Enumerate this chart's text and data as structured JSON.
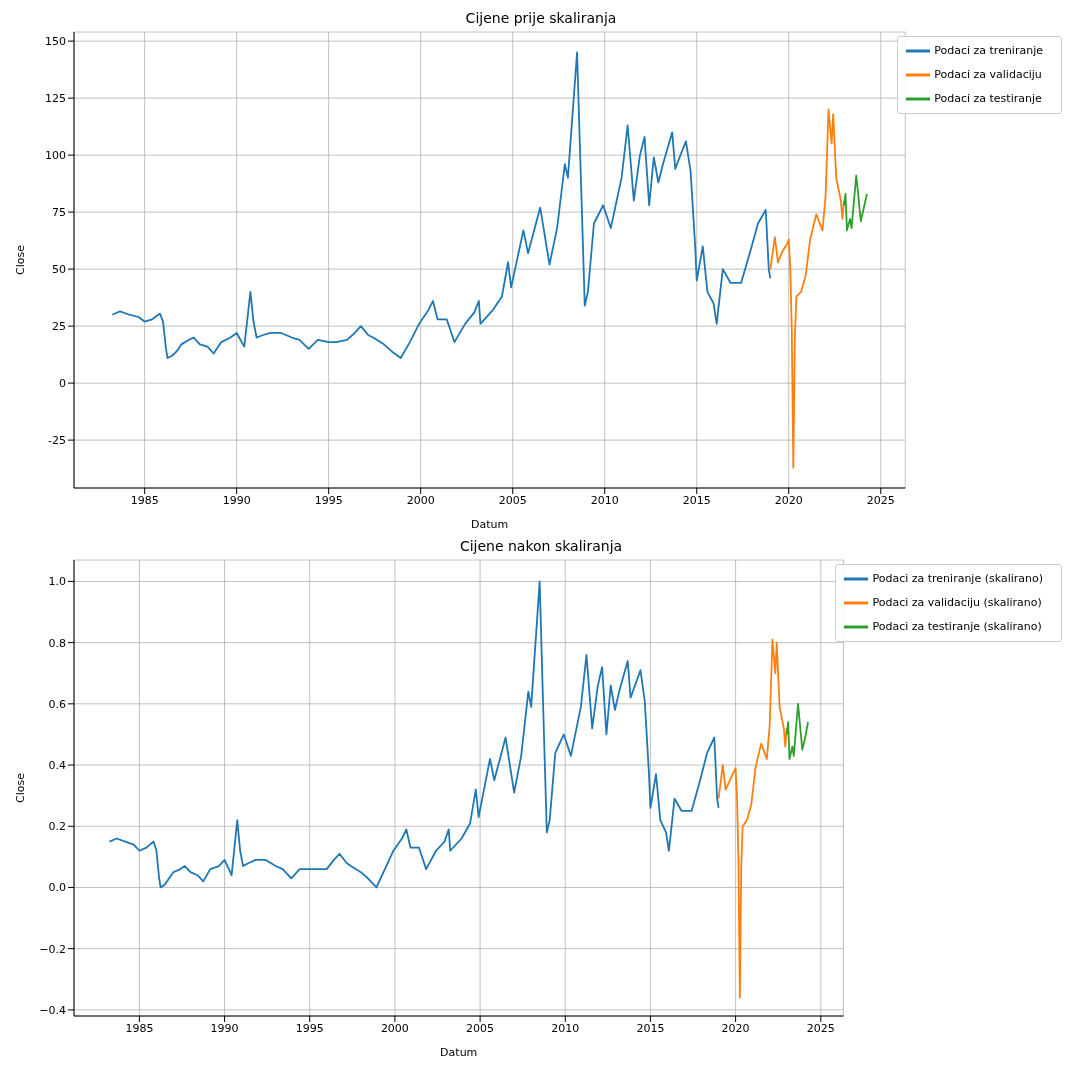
{
  "chart_data": [
    {
      "type": "line",
      "title": "Cijene prije skaliranja",
      "xlabel": "Datum",
      "ylabel": "Close",
      "xlim": [
        "1981-03",
        "2026-05"
      ],
      "xticks": [
        "1985",
        "1990",
        "1995",
        "2000",
        "2005",
        "2010",
        "2015",
        "2020",
        "2025"
      ],
      "ylim": [
        -46,
        154
      ],
      "yticks": [
        -25,
        0,
        25,
        50,
        75,
        100,
        125,
        150
      ],
      "grid": true,
      "legend": "top right",
      "series": [
        {
          "name": "Podaci za treniranje",
          "color": "#1f77b4",
          "x": [
            "1983-04",
            "1983-09",
            "1984-03",
            "1984-09",
            "1985-01",
            "1985-06",
            "1985-11",
            "1986-01",
            "1986-03",
            "1986-04",
            "1986-07",
            "1986-10",
            "1987-01",
            "1987-06",
            "1987-09",
            "1988-01",
            "1988-06",
            "1988-10",
            "1989-03",
            "1989-09",
            "1990-01",
            "1990-06",
            "1990-08",
            "1990-10",
            "1990-12",
            "1991-02",
            "1991-06",
            "1991-11",
            "1992-06",
            "1993-01",
            "1993-06",
            "1993-12",
            "1994-06",
            "1995-01",
            "1995-06",
            "1996-01",
            "1996-06",
            "1996-10",
            "1997-03",
            "1997-06",
            "1998-01",
            "1998-06",
            "1998-12",
            "1999-06",
            "1999-12",
            "2000-06",
            "2000-09",
            "2000-12",
            "2001-06",
            "2001-11",
            "2002-06",
            "2002-12",
            "2003-03",
            "2003-04",
            "2003-12",
            "2004-06",
            "2004-10",
            "2004-12",
            "2005-08",
            "2005-11",
            "2006-07",
            "2007-01",
            "2007-06",
            "2007-11",
            "2008-01",
            "2008-07",
            "2008-09",
            "2008-12",
            "2009-02",
            "2009-06",
            "2009-12",
            "2010-05",
            "2010-12",
            "2011-04",
            "2011-08",
            "2011-12",
            "2012-03",
            "2012-06",
            "2012-09",
            "2012-12",
            "2013-03",
            "2013-09",
            "2013-11",
            "2014-03",
            "2014-06",
            "2014-09",
            "2014-12",
            "2015-01",
            "2015-05",
            "2015-08",
            "2015-12",
            "2016-02",
            "2016-06",
            "2016-11",
            "2017-06",
            "2017-12",
            "2018-05",
            "2018-10",
            "2018-12",
            "2019-01"
          ],
          "values": [
            30,
            31.5,
            30,
            29,
            27,
            28,
            30.5,
            27,
            15,
            11,
            12,
            14,
            17,
            19,
            20,
            17,
            16,
            13,
            18,
            20,
            22,
            16,
            28,
            40,
            27,
            20,
            21,
            22,
            22,
            20,
            19,
            15,
            19,
            18,
            18,
            19,
            22,
            25,
            21,
            20,
            17,
            14,
            11,
            18,
            26,
            32,
            36,
            28,
            28,
            18,
            26,
            31,
            36,
            26,
            32,
            38,
            53,
            42,
            67,
            57,
            77,
            52,
            68,
            96,
            90,
            145,
            100,
            34,
            40,
            70,
            78,
            68,
            90,
            113,
            80,
            100,
            108,
            78,
            99,
            88,
            96,
            110,
            94,
            101,
            106,
            93,
            60,
            45,
            60,
            40,
            35,
            26,
            50,
            44,
            44,
            58,
            70,
            76,
            50,
            46
          ]
        },
        {
          "name": "Podaci za validaciju",
          "color": "#ff7f0e",
          "x": [
            "2019-01",
            "2019-04",
            "2019-06",
            "2019-09",
            "2019-12",
            "2020-01",
            "2020-02",
            "2020-03",
            "2020-04",
            "2020-05",
            "2020-06",
            "2020-09",
            "2020-12",
            "2021-03",
            "2021-07",
            "2021-11",
            "2022-01",
            "2022-03",
            "2022-05",
            "2022-06",
            "2022-08",
            "2022-11",
            "2022-12",
            "2023-01"
          ],
          "values": [
            50,
            64,
            53,
            58,
            61,
            63,
            50,
            24,
            -37,
            20,
            38,
            40,
            47,
            63,
            74,
            67,
            82,
            120,
            105,
            118,
            90,
            80,
            72,
            80
          ]
        },
        {
          "name": "Podaci za testiranje",
          "color": "#2ca02c",
          "x": [
            "2023-01",
            "2023-02",
            "2023-03",
            "2023-05",
            "2023-06",
            "2023-09",
            "2023-10",
            "2023-12",
            "2024-02",
            "2024-04"
          ],
          "values": [
            78,
            83,
            67,
            72,
            68,
            91,
            85,
            71,
            77,
            83
          ]
        }
      ]
    },
    {
      "type": "line",
      "title": "Cijene nakon skaliranja",
      "xlabel": "Datum",
      "ylabel": "Close",
      "xlim": [
        "1981-03",
        "2026-05"
      ],
      "xticks": [
        "1985",
        "1990",
        "1995",
        "2000",
        "2005",
        "2010",
        "2015",
        "2020",
        "2025"
      ],
      "ylim": [
        -0.42,
        1.07
      ],
      "yticks": [
        {
          "value": -0.4,
          "label": "−0.4"
        },
        {
          "value": -0.2,
          "label": "−0.2"
        },
        {
          "value": 0,
          "label": "0.0"
        },
        {
          "value": 0.2,
          "label": "0.2"
        },
        {
          "value": 0.4,
          "label": "0.4"
        },
        {
          "value": 0.6,
          "label": "0.6"
        },
        {
          "value": 0.8,
          "label": "0.8"
        },
        {
          "value": 1,
          "label": "1.0"
        }
      ],
      "grid": true,
      "legend": "top right",
      "series": [
        {
          "name": "Podaci za treniranje (skalirano)",
          "color": "#1f77b4",
          "x": [
            "1983-04",
            "1983-09",
            "1984-03",
            "1984-09",
            "1985-01",
            "1985-06",
            "1985-11",
            "1986-01",
            "1986-03",
            "1986-04",
            "1986-07",
            "1986-10",
            "1987-01",
            "1987-06",
            "1987-09",
            "1988-01",
            "1988-06",
            "1988-10",
            "1989-03",
            "1989-09",
            "1990-01",
            "1990-06",
            "1990-08",
            "1990-10",
            "1990-12",
            "1991-02",
            "1991-06",
            "1991-11",
            "1992-06",
            "1993-01",
            "1993-06",
            "1993-12",
            "1994-06",
            "1995-01",
            "1995-06",
            "1996-01",
            "1996-06",
            "1996-10",
            "1997-03",
            "1997-06",
            "1998-01",
            "1998-06",
            "1998-12",
            "1999-06",
            "1999-12",
            "2000-06",
            "2000-09",
            "2000-12",
            "2001-06",
            "2001-11",
            "2002-06",
            "2002-12",
            "2003-03",
            "2003-04",
            "2003-12",
            "2004-06",
            "2004-10",
            "2004-12",
            "2005-08",
            "2005-11",
            "2006-07",
            "2007-01",
            "2007-06",
            "2007-11",
            "2008-01",
            "2008-07",
            "2008-09",
            "2008-12",
            "2009-02",
            "2009-06",
            "2009-12",
            "2010-05",
            "2010-12",
            "2011-04",
            "2011-08",
            "2011-12",
            "2012-03",
            "2012-06",
            "2012-09",
            "2012-12",
            "2013-03",
            "2013-09",
            "2013-11",
            "2014-03",
            "2014-06",
            "2014-09",
            "2014-12",
            "2015-01",
            "2015-05",
            "2015-08",
            "2015-12",
            "2016-02",
            "2016-06",
            "2016-11",
            "2017-06",
            "2017-12",
            "2018-05",
            "2018-10",
            "2018-12",
            "2019-01"
          ],
          "values": [
            0.15,
            0.16,
            0.15,
            0.14,
            0.12,
            0.13,
            0.15,
            0.12,
            0.03,
            0.0,
            0.01,
            0.03,
            0.05,
            0.06,
            0.07,
            0.05,
            0.04,
            0.02,
            0.06,
            0.07,
            0.09,
            0.04,
            0.13,
            0.22,
            0.12,
            0.07,
            0.08,
            0.09,
            0.09,
            0.07,
            0.06,
            0.03,
            0.06,
            0.06,
            0.06,
            0.06,
            0.09,
            0.11,
            0.08,
            0.07,
            0.05,
            0.03,
            0.0,
            0.06,
            0.12,
            0.16,
            0.19,
            0.13,
            0.13,
            0.06,
            0.12,
            0.15,
            0.19,
            0.12,
            0.16,
            0.21,
            0.32,
            0.23,
            0.42,
            0.35,
            0.49,
            0.31,
            0.43,
            0.64,
            0.59,
            1.0,
            0.66,
            0.18,
            0.22,
            0.44,
            0.5,
            0.43,
            0.59,
            0.76,
            0.52,
            0.66,
            0.72,
            0.5,
            0.66,
            0.58,
            0.64,
            0.74,
            0.62,
            0.67,
            0.71,
            0.61,
            0.37,
            0.26,
            0.37,
            0.22,
            0.18,
            0.12,
            0.29,
            0.25,
            0.25,
            0.35,
            0.44,
            0.49,
            0.29,
            0.26
          ]
        },
        {
          "name": "Podaci za validaciju (skalirano)",
          "color": "#ff7f0e",
          "x": [
            "2019-01",
            "2019-04",
            "2019-06",
            "2019-09",
            "2019-12",
            "2020-01",
            "2020-02",
            "2020-03",
            "2020-04",
            "2020-05",
            "2020-06",
            "2020-09",
            "2020-12",
            "2021-03",
            "2021-07",
            "2021-11",
            "2022-01",
            "2022-03",
            "2022-05",
            "2022-06",
            "2022-08",
            "2022-11",
            "2022-12",
            "2023-01"
          ],
          "values": [
            0.29,
            0.4,
            0.32,
            0.35,
            0.38,
            0.39,
            0.29,
            0.1,
            -0.36,
            0.07,
            0.2,
            0.22,
            0.27,
            0.39,
            0.47,
            0.42,
            0.53,
            0.81,
            0.7,
            0.8,
            0.59,
            0.52,
            0.46,
            0.52
          ]
        },
        {
          "name": "Podaci za testiranje (skalirano)",
          "color": "#2ca02c",
          "x": [
            "2023-01",
            "2023-02",
            "2023-03",
            "2023-05",
            "2023-06",
            "2023-09",
            "2023-10",
            "2023-12",
            "2024-02",
            "2024-04"
          ],
          "values": [
            0.5,
            0.54,
            0.42,
            0.46,
            0.43,
            0.6,
            0.55,
            0.45,
            0.49,
            0.54
          ]
        }
      ]
    }
  ]
}
